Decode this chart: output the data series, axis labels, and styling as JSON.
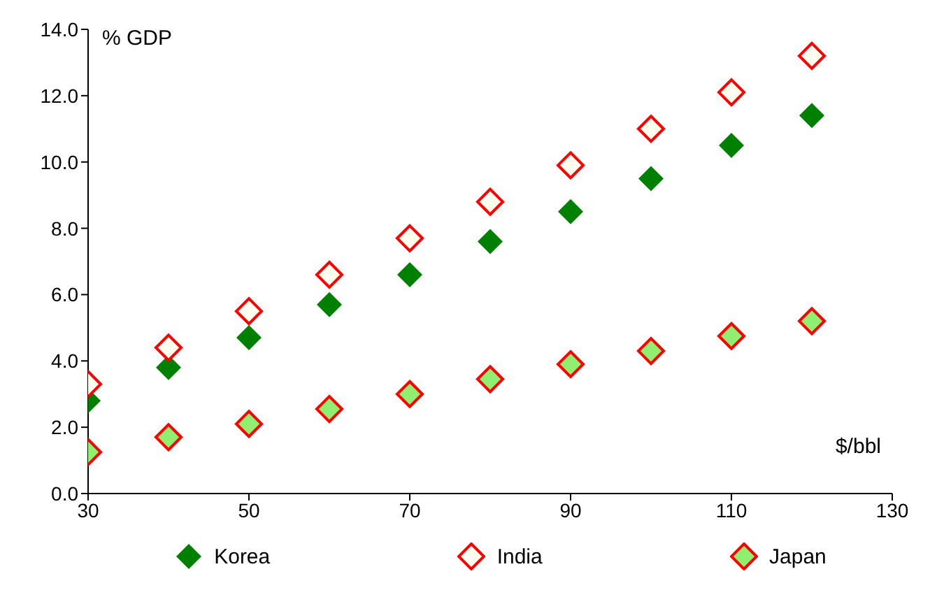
{
  "chart_data": {
    "type": "scatter",
    "ylabel": "% GDP",
    "xlabel": "$/bbl",
    "x": [
      30,
      40,
      50,
      60,
      70,
      80,
      90,
      100,
      110,
      120
    ],
    "series": [
      {
        "name": "Korea",
        "color": "#008000",
        "values": [
          2.8,
          3.8,
          4.7,
          5.7,
          6.6,
          7.6,
          8.5,
          9.5,
          10.5,
          11.4
        ]
      },
      {
        "name": "India",
        "color": "#ff0000",
        "values": [
          3.3,
          4.4,
          5.5,
          6.6,
          7.7,
          8.8,
          9.9,
          11.0,
          12.1,
          13.2
        ]
      },
      {
        "name": "Japan",
        "color": "#90ee70",
        "values": [
          1.25,
          1.7,
          2.1,
          2.55,
          3.0,
          3.45,
          3.9,
          4.3,
          4.75,
          5.2
        ]
      }
    ],
    "xlim": [
      30,
      130
    ],
    "xticks": [
      30,
      50,
      70,
      90,
      110,
      130
    ],
    "ylim": [
      0,
      14
    ],
    "yticks": [
      {
        "value": 0,
        "label": "0.0"
      },
      {
        "value": 2,
        "label": "2.0"
      },
      {
        "value": 4,
        "label": "4.0"
      },
      {
        "value": 6,
        "label": "6.0"
      },
      {
        "value": 8,
        "label": "8.0"
      },
      {
        "value": 10,
        "label": "10.0"
      },
      {
        "value": 12,
        "label": "12.0"
      },
      {
        "value": 14,
        "label": "14.0"
      }
    ],
    "grid": false,
    "legend": "bottom",
    "marker": "diamond"
  }
}
